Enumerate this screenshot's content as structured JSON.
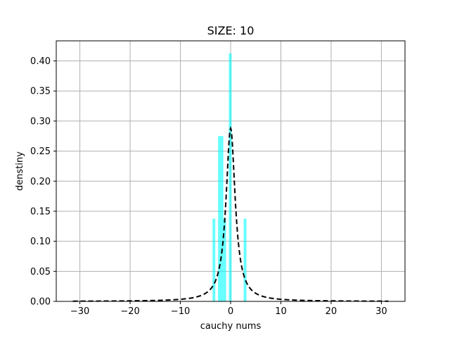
{
  "chart_data": {
    "type": "bar",
    "title": "SIZE: 10",
    "xlabel": "cauchy nums",
    "ylabel": "denstiny",
    "xlim": [
      -34.7,
      34.7
    ],
    "ylim": [
      0.0,
      0.4334
    ],
    "grid": true,
    "xticks": [
      -30,
      -20,
      -10,
      0,
      10,
      20,
      30
    ],
    "xtick_labels": [
      "−30",
      "−20",
      "−10",
      "0",
      "10",
      "20",
      "30"
    ],
    "yticks": [
      0.0,
      0.05,
      0.1,
      0.15,
      0.2,
      0.25,
      0.3,
      0.35,
      0.4
    ],
    "ytick_labels": [
      "0.00",
      "0.05",
      "0.10",
      "0.15",
      "0.20",
      "0.25",
      "0.30",
      "0.35",
      "0.40"
    ],
    "histogram": {
      "color": "#00ffff",
      "opacity": 0.6,
      "bins": [
        {
          "x0": -3.6,
          "x1": -3.05,
          "value": 0.1375
        },
        {
          "x0": -2.5,
          "x1": -1.45,
          "value": 0.275
        },
        {
          "x0": -1.45,
          "x1": -0.9,
          "value": 0.1375
        },
        {
          "x0": -0.35,
          "x1": 0.2,
          "value": 0.4125
        },
        {
          "x0": 2.6,
          "x1": 3.15,
          "value": 0.1375
        }
      ]
    },
    "series": [
      {
        "style": "dashed",
        "color": "#000000",
        "x_range": [
          -31.4,
          31.4
        ],
        "peak": 0.288,
        "location": 0.0,
        "scale": 1.105
      }
    ]
  }
}
